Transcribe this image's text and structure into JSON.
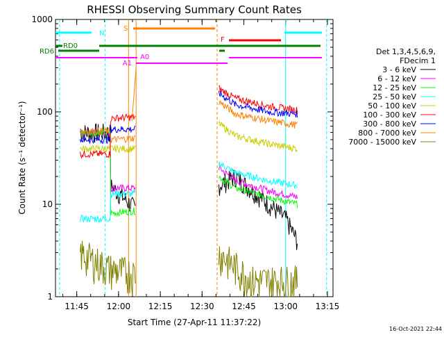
{
  "chart_data": {
    "type": "line",
    "title": "RHESSI Observing Summary Count Rates",
    "xlabel": "Start Time (27-Apr-11 11:37:22)",
    "ylabel": "Count Rate (s⁻¹ detector⁻¹)",
    "yscale": "log",
    "ylim": [
      1,
      1000
    ],
    "xlim": [
      "11:37:22",
      "13:17:00"
    ],
    "xticks": [
      "11:45",
      "12:00",
      "12:15",
      "12:30",
      "12:45",
      "13:00",
      "13:15"
    ],
    "yticks": [
      "1",
      "10",
      "100",
      "1000"
    ],
    "legend": {
      "header1": "Det 1,3,4,5,6,9,",
      "header2": "FDecim 1",
      "placement": "right"
    },
    "series": [
      {
        "name": "3 - 6 keV",
        "color": "#000000",
        "seg1": [
          [
            11.77,
            60
          ],
          [
            11.95,
            60
          ],
          [
            11.95,
            16
          ],
          [
            12.1,
            9
          ],
          [
            12.1,
            0
          ]
        ],
        "seg2": [
          [
            12.6,
            16
          ],
          [
            12.7,
            20
          ],
          [
            12.9,
            10
          ],
          [
            13.0,
            7
          ],
          [
            13.07,
            4
          ]
        ]
      },
      {
        "name": "6 - 12 keV",
        "color": "#ff00ff",
        "seg1": [
          [
            11.77,
            60
          ],
          [
            11.95,
            60
          ],
          [
            11.95,
            15
          ],
          [
            12.1,
            15
          ],
          [
            12.1,
            0
          ]
        ],
        "seg2": [
          [
            12.6,
            25
          ],
          [
            12.7,
            18
          ],
          [
            12.9,
            14
          ],
          [
            13.07,
            12
          ]
        ]
      },
      {
        "name": "12 - 25 keV",
        "color": "#00ff00",
        "seg1": [
          [
            11.77,
            60
          ],
          [
            11.95,
            60
          ],
          [
            11.95,
            8
          ],
          [
            12.1,
            8.5
          ],
          [
            12.1,
            0
          ]
        ],
        "seg2": [
          [
            12.6,
            20
          ],
          [
            12.7,
            15
          ],
          [
            12.9,
            12
          ],
          [
            13.07,
            10
          ]
        ]
      },
      {
        "name": "25 - 50 keV",
        "color": "#00ffff",
        "seg1": [
          [
            11.77,
            7
          ],
          [
            11.95,
            7
          ],
          [
            11.95,
            13
          ],
          [
            12.1,
            13
          ],
          [
            12.1,
            0
          ]
        ],
        "seg2": [
          [
            12.6,
            28
          ],
          [
            12.7,
            22
          ],
          [
            12.9,
            18
          ],
          [
            13.07,
            16
          ]
        ]
      },
      {
        "name": "50 - 100 keV",
        "color": "#cccc00",
        "seg1": [
          [
            11.77,
            40
          ],
          [
            11.95,
            40
          ],
          [
            11.95,
            40
          ],
          [
            12.1,
            40
          ],
          [
            12.1,
            0
          ]
        ],
        "seg2": [
          [
            12.6,
            75
          ],
          [
            12.7,
            55
          ],
          [
            12.9,
            45
          ],
          [
            13.07,
            40
          ]
        ]
      },
      {
        "name": "100 - 300 keV",
        "color": "#ff0000",
        "seg1": [
          [
            11.77,
            35
          ],
          [
            11.95,
            35
          ],
          [
            11.95,
            85
          ],
          [
            12.1,
            88
          ],
          [
            12.1,
            0
          ]
        ],
        "seg2": [
          [
            12.6,
            180
          ],
          [
            12.7,
            140
          ],
          [
            12.9,
            115
          ],
          [
            13.07,
            105
          ]
        ]
      },
      {
        "name": "300 - 800 keV",
        "color": "#0000ff",
        "seg1": [
          [
            11.77,
            50
          ],
          [
            11.95,
            50
          ],
          [
            11.95,
            65
          ],
          [
            12.1,
            65
          ],
          [
            12.1,
            0
          ]
        ],
        "seg2": [
          [
            12.6,
            160
          ],
          [
            12.7,
            120
          ],
          [
            12.9,
            100
          ],
          [
            13.07,
            95
          ]
        ]
      },
      {
        "name": "800 - 7000 keV",
        "color": "#ff8000",
        "seg1": [
          [
            11.77,
            62
          ],
          [
            11.95,
            62
          ],
          [
            11.95,
            50
          ],
          [
            12.1,
            52
          ],
          [
            12.1,
            0
          ]
        ],
        "seg2": [
          [
            12.6,
            130
          ],
          [
            12.7,
            95
          ],
          [
            12.9,
            80
          ],
          [
            13.07,
            72
          ]
        ]
      },
      {
        "name": "7000 - 15000 keV",
        "color": "#808000",
        "seg1": [
          [
            11.77,
            3
          ],
          [
            11.95,
            2
          ],
          [
            12.1,
            1.8
          ],
          [
            12.1,
            0
          ]
        ],
        "seg2": [
          [
            12.6,
            3
          ],
          [
            12.8,
            1.5
          ],
          [
            13.07,
            1.5
          ]
        ]
      }
    ],
    "flags": [
      {
        "label": "N",
        "color": "#00ffff"
      },
      {
        "label": "S",
        "color": "#ff8000"
      },
      {
        "label": "F",
        "color": "#ff0000"
      },
      {
        "label": "RD0",
        "color": "#008000"
      },
      {
        "label": "RD6",
        "color": "#008000"
      },
      {
        "label": "A0",
        "color": "#ff00ff"
      },
      {
        "label": "A1",
        "color": "#ff00ff"
      }
    ],
    "timestamp": "16-Oct-2021 22:44"
  }
}
